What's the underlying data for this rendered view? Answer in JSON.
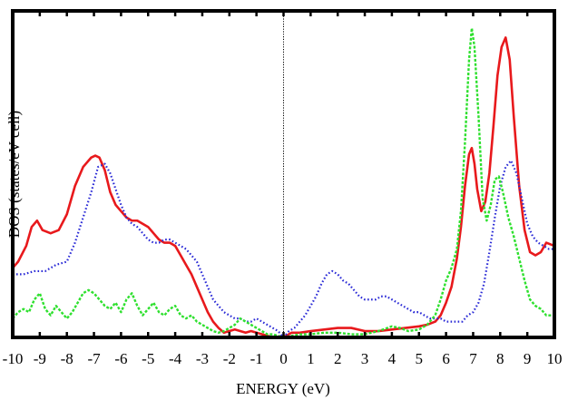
{
  "chart_data": {
    "type": "line",
    "xlabel": "ENERGY (eV)",
    "ylabel": "DOS (states/eV cell)",
    "xlim": [
      -10,
      10
    ],
    "ylim": [
      0,
      1
    ],
    "x_ticks": [
      "-10",
      "-9",
      "-8",
      "-7",
      "-6",
      "-5",
      "-4",
      "-3",
      "-2",
      "-1",
      "0",
      "1",
      "2",
      "3",
      "4",
      "5",
      "6",
      "7",
      "8",
      "9",
      "10"
    ],
    "y_ticks_labeled": false,
    "reference_line_x": 0,
    "series": [
      {
        "style": "solid",
        "color": "#e8191c",
        "x": [
          -10,
          -9.8,
          -9.5,
          -9.3,
          -9.1,
          -8.9,
          -8.6,
          -8.3,
          -8.0,
          -7.7,
          -7.4,
          -7.1,
          -6.95,
          -6.8,
          -6.6,
          -6.4,
          -6.2,
          -6.0,
          -5.8,
          -5.6,
          -5.4,
          -5.2,
          -5.0,
          -4.8,
          -4.6,
          -4.4,
          -4.2,
          -4.0,
          -3.8,
          -3.6,
          -3.4,
          -3.2,
          -3.0,
          -2.8,
          -2.6,
          -2.4,
          -2.2,
          -2.0,
          -1.8,
          -1.6,
          -1.4,
          -1.2,
          -1.0,
          -0.8,
          -0.6,
          -0.4,
          -0.2,
          0.0,
          0.3,
          0.6,
          1.0,
          1.5,
          2.0,
          2.5,
          3.0,
          3.5,
          4.0,
          4.5,
          5.0,
          5.3,
          5.6,
          5.8,
          6.0,
          6.2,
          6.4,
          6.55,
          6.7,
          6.85,
          6.95,
          7.05,
          7.15,
          7.3,
          7.45,
          7.6,
          7.75,
          7.9,
          8.05,
          8.2,
          8.35,
          8.5,
          8.7,
          8.9,
          9.1,
          9.3,
          9.5,
          9.7,
          10.0
        ],
        "y": [
          0.22,
          0.24,
          0.29,
          0.35,
          0.37,
          0.34,
          0.33,
          0.34,
          0.39,
          0.48,
          0.54,
          0.57,
          0.576,
          0.57,
          0.53,
          0.46,
          0.42,
          0.4,
          0.38,
          0.37,
          0.37,
          0.36,
          0.35,
          0.33,
          0.31,
          0.3,
          0.3,
          0.29,
          0.26,
          0.23,
          0.2,
          0.16,
          0.12,
          0.08,
          0.05,
          0.03,
          0.015,
          0.02,
          0.025,
          0.02,
          0.015,
          0.02,
          0.015,
          0.01,
          0.005,
          0.0,
          0.0,
          0.0,
          0.015,
          0.015,
          0.02,
          0.025,
          0.03,
          0.03,
          0.02,
          0.02,
          0.025,
          0.03,
          0.035,
          0.04,
          0.05,
          0.07,
          0.11,
          0.16,
          0.25,
          0.35,
          0.48,
          0.58,
          0.6,
          0.55,
          0.47,
          0.4,
          0.43,
          0.52,
          0.67,
          0.83,
          0.92,
          0.95,
          0.88,
          0.7,
          0.48,
          0.34,
          0.27,
          0.26,
          0.27,
          0.3,
          0.29
        ]
      },
      {
        "style": "dotted",
        "color": "#2a2ad6",
        "x": [
          -10,
          -9.6,
          -9.2,
          -8.8,
          -8.4,
          -8.0,
          -7.7,
          -7.4,
          -7.1,
          -6.85,
          -6.6,
          -6.4,
          -6.2,
          -6.0,
          -5.8,
          -5.6,
          -5.4,
          -5.2,
          -5.0,
          -4.8,
          -4.6,
          -4.4,
          -4.2,
          -4.0,
          -3.8,
          -3.6,
          -3.4,
          -3.2,
          -3.0,
          -2.8,
          -2.6,
          -2.4,
          -2.2,
          -2.0,
          -1.8,
          -1.6,
          -1.4,
          -1.2,
          -1.0,
          -0.8,
          -0.6,
          -0.4,
          -0.2,
          0.0,
          0.2,
          0.4,
          0.6,
          0.8,
          1.0,
          1.2,
          1.4,
          1.6,
          1.8,
          2.0,
          2.2,
          2.4,
          2.6,
          2.8,
          3.0,
          3.2,
          3.4,
          3.6,
          3.8,
          4.0,
          4.2,
          4.4,
          4.6,
          4.8,
          5.0,
          5.2,
          5.4,
          5.6,
          5.8,
          6.0,
          6.2,
          6.4,
          6.6,
          6.8,
          7.0,
          7.2,
          7.4,
          7.6,
          7.8,
          8.0,
          8.2,
          8.4,
          8.6,
          8.8,
          9.0,
          9.2,
          9.4,
          9.6,
          9.8,
          10.0
        ],
        "y": [
          0.2,
          0.2,
          0.21,
          0.21,
          0.23,
          0.24,
          0.3,
          0.38,
          0.46,
          0.54,
          0.55,
          0.52,
          0.47,
          0.42,
          0.38,
          0.36,
          0.35,
          0.33,
          0.31,
          0.3,
          0.3,
          0.31,
          0.31,
          0.3,
          0.29,
          0.28,
          0.26,
          0.24,
          0.2,
          0.16,
          0.12,
          0.1,
          0.08,
          0.07,
          0.06,
          0.06,
          0.05,
          0.05,
          0.06,
          0.05,
          0.04,
          0.03,
          0.02,
          0.0,
          0.02,
          0.03,
          0.05,
          0.07,
          0.1,
          0.13,
          0.17,
          0.2,
          0.21,
          0.2,
          0.18,
          0.17,
          0.15,
          0.13,
          0.12,
          0.12,
          0.12,
          0.13,
          0.13,
          0.12,
          0.11,
          0.1,
          0.09,
          0.08,
          0.08,
          0.07,
          0.06,
          0.06,
          0.06,
          0.05,
          0.05,
          0.05,
          0.05,
          0.07,
          0.08,
          0.11,
          0.17,
          0.27,
          0.38,
          0.48,
          0.54,
          0.56,
          0.52,
          0.44,
          0.36,
          0.32,
          0.3,
          0.29,
          0.28,
          0.28
        ]
      },
      {
        "style": "dashed",
        "color": "#2ee02e",
        "x": [
          -10,
          -9.8,
          -9.6,
          -9.4,
          -9.2,
          -9.0,
          -8.8,
          -8.6,
          -8.4,
          -8.2,
          -8.0,
          -7.8,
          -7.6,
          -7.4,
          -7.2,
          -7.0,
          -6.8,
          -6.6,
          -6.4,
          -6.2,
          -6.0,
          -5.8,
          -5.6,
          -5.4,
          -5.2,
          -5.0,
          -4.8,
          -4.6,
          -4.4,
          -4.2,
          -4.0,
          -3.8,
          -3.6,
          -3.4,
          -3.2,
          -3.0,
          -2.8,
          -2.6,
          -2.4,
          -2.2,
          -2.0,
          -1.8,
          -1.6,
          -1.4,
          -1.2,
          -1.0,
          -0.8,
          -0.6,
          -0.4,
          -0.2,
          0.0,
          0.3,
          0.6,
          1.0,
          1.5,
          2.0,
          2.5,
          3.0,
          3.5,
          4.0,
          4.3,
          4.6,
          5.0,
          5.3,
          5.6,
          5.8,
          6.0,
          6.2,
          6.4,
          6.55,
          6.7,
          6.85,
          6.95,
          7.05,
          7.2,
          7.35,
          7.5,
          7.65,
          7.8,
          7.95,
          8.1,
          8.3,
          8.5,
          8.7,
          8.9,
          9.1,
          9.3,
          9.5,
          9.7,
          10.0
        ],
        "y": [
          0.06,
          0.08,
          0.09,
          0.08,
          0.12,
          0.14,
          0.09,
          0.07,
          0.1,
          0.08,
          0.06,
          0.08,
          0.11,
          0.14,
          0.15,
          0.14,
          0.12,
          0.1,
          0.09,
          0.11,
          0.08,
          0.12,
          0.14,
          0.1,
          0.07,
          0.09,
          0.11,
          0.08,
          0.07,
          0.09,
          0.1,
          0.07,
          0.06,
          0.07,
          0.05,
          0.04,
          0.03,
          0.02,
          0.015,
          0.02,
          0.03,
          0.04,
          0.06,
          0.05,
          0.04,
          0.03,
          0.02,
          0.01,
          0.01,
          0.005,
          0.0,
          0.005,
          0.01,
          0.01,
          0.015,
          0.015,
          0.01,
          0.01,
          0.02,
          0.035,
          0.03,
          0.02,
          0.025,
          0.04,
          0.07,
          0.12,
          0.18,
          0.22,
          0.28,
          0.4,
          0.62,
          0.88,
          0.98,
          0.92,
          0.7,
          0.44,
          0.37,
          0.42,
          0.5,
          0.51,
          0.46,
          0.38,
          0.32,
          0.25,
          0.18,
          0.12,
          0.1,
          0.09,
          0.07,
          0.07
        ]
      }
    ]
  }
}
